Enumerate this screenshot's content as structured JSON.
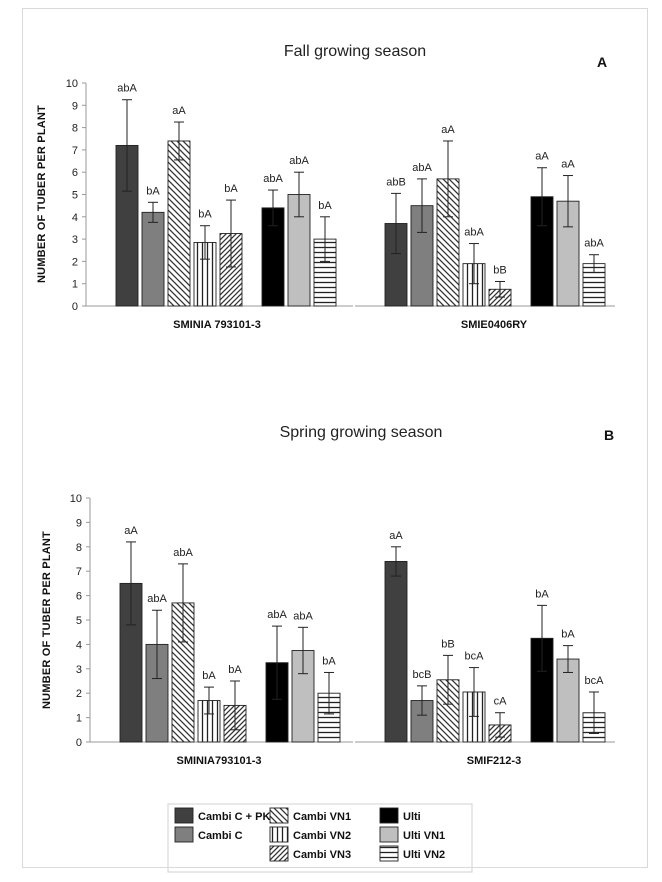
{
  "chart_data": [
    {
      "type": "bar",
      "title": "Fall growing season",
      "panel_label": "A",
      "ylabel": "NUMBER OF TUBER PER PLANT",
      "ylim": [
        0,
        10
      ],
      "yticks": [
        "0",
        "1",
        "2",
        "3",
        "4",
        "5",
        "6",
        "7",
        "8",
        "9",
        "10"
      ],
      "groups": [
        {
          "name": "SMINIA  793101-3",
          "bars": [
            {
              "series": "Cambi C + PK",
              "value": 7.2,
              "err": 2.05,
              "label": "abA"
            },
            {
              "series": "Cambi C",
              "value": 4.2,
              "err": 0.45,
              "label": "bA"
            },
            {
              "series": "Cambi VN1",
              "value": 7.4,
              "err": 0.85,
              "label": "aA"
            },
            {
              "series": "Cambi VN2",
              "value": 2.85,
              "err": 0.75,
              "label": "bA"
            },
            {
              "series": "Cambi VN3",
              "value": 3.25,
              "err": 1.5,
              "label": "bA"
            },
            {
              "series": "Ulti",
              "value": 4.4,
              "err": 0.8,
              "label": "abA"
            },
            {
              "series": "Ulti VN1",
              "value": 5.0,
              "err": 1.0,
              "label": "abA"
            },
            {
              "series": "Ulti VN2",
              "value": 3.0,
              "err": 1.0,
              "label": "bA"
            }
          ]
        },
        {
          "name": "SMIE0406RY",
          "bars": [
            {
              "series": "Cambi C + PK",
              "value": 3.7,
              "err": 1.35,
              "label": "abB"
            },
            {
              "series": "Cambi C",
              "value": 4.5,
              "err": 1.2,
              "label": "abA"
            },
            {
              "series": "Cambi VN1",
              "value": 5.7,
              "err": 1.7,
              "label": "aA"
            },
            {
              "series": "Cambi VN2",
              "value": 1.9,
              "err": 0.9,
              "label": "abA"
            },
            {
              "series": "Cambi VN3",
              "value": 0.75,
              "err": 0.35,
              "label": "bB"
            },
            {
              "series": "Ulti",
              "value": 4.9,
              "err": 1.3,
              "label": "aA"
            },
            {
              "series": "Ulti VN1",
              "value": 4.7,
              "err": 1.15,
              "label": "aA"
            },
            {
              "series": "Ulti VN2",
              "value": 1.9,
              "err": 0.4,
              "label": "abA"
            }
          ]
        }
      ],
      "grid": false
    },
    {
      "type": "bar",
      "title": "Spring growing season",
      "panel_label": "B",
      "ylabel": "NUMBER OF TUBER  PER PLANT",
      "ylim": [
        0,
        10
      ],
      "yticks": [
        "0",
        "1",
        "2",
        "3",
        "4",
        "5",
        "6",
        "7",
        "8",
        "9",
        "10"
      ],
      "groups": [
        {
          "name": "SMINIA793101-3",
          "bars": [
            {
              "series": "Cambi C + PK",
              "value": 6.5,
              "err": 1.7,
              "label": "aA"
            },
            {
              "series": "Cambi C",
              "value": 4.0,
              "err": 1.4,
              "label": "abA"
            },
            {
              "series": "Cambi VN1",
              "value": 5.7,
              "err": 1.6,
              "label": "abA"
            },
            {
              "series": "Cambi VN2",
              "value": 1.7,
              "err": 0.55,
              "label": "bA"
            },
            {
              "series": "Cambi VN3",
              "value": 1.5,
              "err": 1.0,
              "label": "bA"
            },
            {
              "series": "Ulti",
              "value": 3.25,
              "err": 1.5,
              "label": "abA"
            },
            {
              "series": "Ulti VN1",
              "value": 3.75,
              "err": 0.95,
              "label": "abA"
            },
            {
              "series": "Ulti VN2",
              "value": 2.0,
              "err": 0.85,
              "label": "bA"
            }
          ]
        },
        {
          "name": "SMIF212-3",
          "bars": [
            {
              "series": "Cambi C + PK",
              "value": 7.4,
              "err": 0.6,
              "label": "aA"
            },
            {
              "series": "Cambi C",
              "value": 1.7,
              "err": 0.6,
              "label": "bcB"
            },
            {
              "series": "Cambi VN1",
              "value": 2.55,
              "err": 1.0,
              "label": "bB"
            },
            {
              "series": "Cambi VN2",
              "value": 2.05,
              "err": 1.0,
              "label": "bcA"
            },
            {
              "series": "Cambi VN3",
              "value": 0.7,
              "err": 0.5,
              "label": "cA"
            },
            {
              "series": "Ulti",
              "value": 4.25,
              "err": 1.35,
              "label": "bA"
            },
            {
              "series": "Ulti VN1",
              "value": 3.4,
              "err": 0.55,
              "label": "bA"
            },
            {
              "series": "Ulti VN2",
              "value": 1.2,
              "err": 0.85,
              "label": "bcA"
            }
          ]
        }
      ],
      "grid": false
    }
  ],
  "legend": {
    "placement": "bottom",
    "items": [
      {
        "name": "Cambi C + PK",
        "pattern": "solid-dark",
        "color": "#404040"
      },
      {
        "name": "Cambi C",
        "pattern": "solid-mid",
        "color": "#7f7f7f"
      },
      {
        "name": "Cambi VN1",
        "pattern": "diagonal-wide",
        "color": "#ffffff"
      },
      {
        "name": "Cambi VN2",
        "pattern": "vertical-lines",
        "color": "#ffffff"
      },
      {
        "name": "Cambi VN3",
        "pattern": "diagonal-narrow",
        "color": "#ffffff"
      },
      {
        "name": "Ulti",
        "pattern": "solid-black",
        "color": "#000000"
      },
      {
        "name": "Ulti VN1",
        "pattern": "solid-light",
        "color": "#bfbfbf"
      },
      {
        "name": "Ulti VN2",
        "pattern": "horizontal-lines",
        "color": "#ffffff"
      }
    ]
  }
}
